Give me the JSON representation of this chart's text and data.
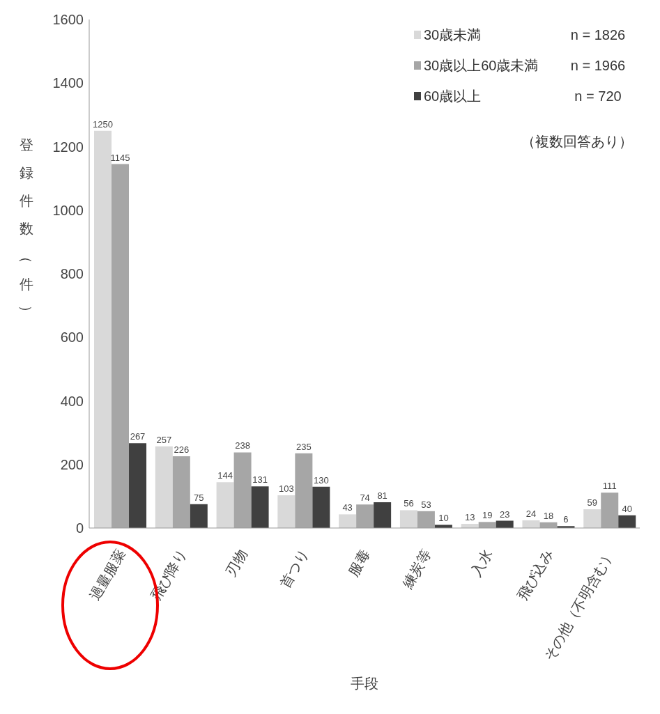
{
  "chart_data": {
    "type": "bar",
    "xlabel": "手段",
    "ylabel": "登録件数（件）",
    "categories": [
      "過量服薬",
      "飛び降り",
      "刃物",
      "首つり",
      "服毒",
      "練炭等",
      "入水",
      "飛び込み",
      "その他（不明含む）"
    ],
    "series": [
      {
        "name": "30歳未満",
        "color": "#d9d9d9",
        "values": [
          1250,
          257,
          144,
          103,
          43,
          56,
          13,
          24,
          59
        ]
      },
      {
        "name": "30歳以上60歳未満",
        "color": "#a6a6a6",
        "values": [
          1145,
          226,
          238,
          235,
          74,
          53,
          19,
          18,
          111
        ]
      },
      {
        "name": "60歳以上",
        "color": "#404040",
        "values": [
          267,
          75,
          131,
          130,
          81,
          10,
          23,
          6,
          40
        ]
      }
    ],
    "annotations": [
      "n = 1826",
      "n = 1966",
      "n = 720",
      "（複数回答あり）"
    ],
    "ylim": [
      0,
      1600
    ],
    "yticks": [
      0,
      200,
      400,
      600,
      800,
      1000,
      1200,
      1400,
      1600
    ],
    "legend": "top right",
    "data_labels": true
  }
}
